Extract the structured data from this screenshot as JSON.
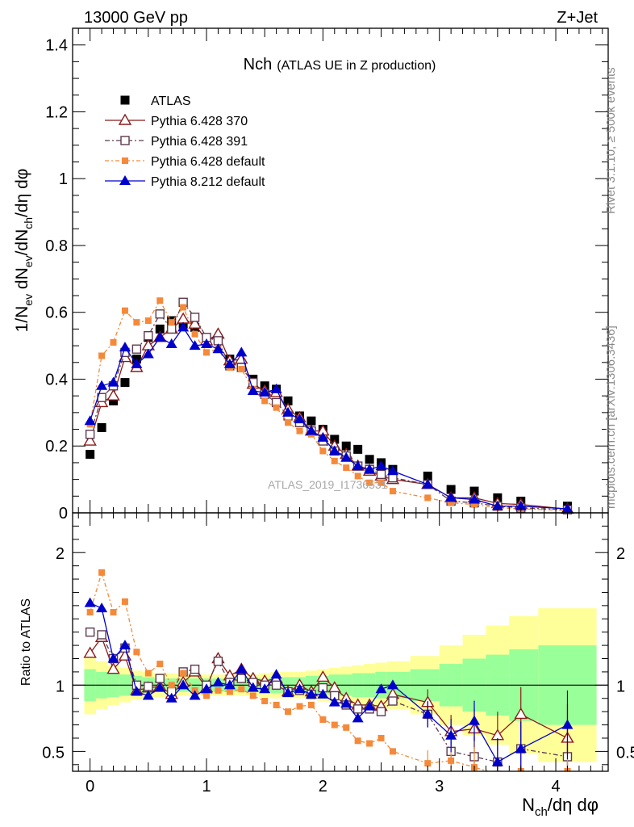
{
  "header": {
    "left": "13000 GeV pp",
    "right": "Z+Jet"
  },
  "side_text": {
    "top": "Rivet 3.1.10, ≥ 500k events",
    "bottom": "mcplots.cern.ch [arXiv:1306.3436]"
  },
  "watermark": "ATLAS_2019_I1736531",
  "colors": {
    "atlas": "#000000",
    "p370": "#8b1a1a",
    "p391": "#5c3a4e",
    "p6def": "#f5893a",
    "p8def": "#0000cc",
    "band_inner": "#99ff99",
    "band_outer": "#ffff99"
  },
  "chart_data": [
    {
      "type": "scatter",
      "panel": "main",
      "title_main": "Nch",
      "title_sub": "(ATLAS UE in Z production)",
      "ylabel": "1/N_ev dN_ev/dN_ch/dη dφ",
      "ylabel_parts": [
        "1/N",
        "ev",
        " dN",
        "ev",
        "/dN",
        "ch",
        "/dη dφ"
      ],
      "xlim": [
        -0.15,
        4.45
      ],
      "ylim": [
        0,
        1.45
      ],
      "y_ticks": [
        0,
        0.2,
        0.4,
        0.6,
        0.8,
        1,
        1.2,
        1.4
      ],
      "y_tick_labels": [
        "0",
        "0.2",
        "0.4",
        "0.6",
        "0.8",
        "1",
        "1.2",
        "1.4"
      ],
      "legend": [
        "ATLAS",
        "Pythia 6.428 370",
        "Pythia 6.428 391",
        "Pythia 6.428 default",
        "Pythia 8.212 default"
      ],
      "series": [
        {
          "name": "ATLAS",
          "x": [
            0,
            0.1,
            0.2,
            0.3,
            0.4,
            0.5,
            0.6,
            0.7,
            0.8,
            0.9,
            1.0,
            1.1,
            1.2,
            1.3,
            1.4,
            1.5,
            1.6,
            1.7,
            1.8,
            1.9,
            2.0,
            2.1,
            2.2,
            2.3,
            2.4,
            2.5,
            2.6,
            2.9,
            3.1,
            3.3,
            3.5,
            3.7,
            4.1
          ],
          "values": [
            0.175,
            0.255,
            0.335,
            0.39,
            0.46,
            0.525,
            0.55,
            0.575,
            0.565,
            0.555,
            0.52,
            0.52,
            0.46,
            0.445,
            0.4,
            0.38,
            0.37,
            0.335,
            0.29,
            0.275,
            0.25,
            0.22,
            0.2,
            0.19,
            0.16,
            0.15,
            0.13,
            0.11,
            0.07,
            0.065,
            0.045,
            0.035,
            0.02
          ]
        },
        {
          "name": "Pythia 6.428 370",
          "x": [
            0,
            0.1,
            0.2,
            0.3,
            0.4,
            0.5,
            0.6,
            0.7,
            0.8,
            0.9,
            1.0,
            1.1,
            1.2,
            1.3,
            1.4,
            1.5,
            1.6,
            1.7,
            1.8,
            1.9,
            2.0,
            2.1,
            2.2,
            2.3,
            2.4,
            2.5,
            2.6,
            2.9,
            3.1,
            3.3,
            3.5,
            3.7,
            4.1
          ],
          "values": [
            0.215,
            0.33,
            0.35,
            0.465,
            0.435,
            0.5,
            0.525,
            0.55,
            0.58,
            0.565,
            0.515,
            0.535,
            0.455,
            0.46,
            0.385,
            0.365,
            0.36,
            0.31,
            0.285,
            0.245,
            0.245,
            0.2,
            0.175,
            0.14,
            0.125,
            0.11,
            0.1,
            0.085,
            0.045,
            0.045,
            0.028,
            0.025,
            0.011
          ]
        },
        {
          "name": "Pythia 6.428 391",
          "x": [
            0,
            0.1,
            0.2,
            0.3,
            0.4,
            0.5,
            0.6,
            0.7,
            0.8,
            0.9,
            1.0,
            1.1,
            1.2,
            1.3,
            1.4,
            1.5,
            1.6,
            1.7,
            1.8,
            1.9,
            2.0,
            2.1,
            2.2,
            2.3,
            2.4,
            2.5,
            2.6,
            2.9,
            3.1,
            3.3,
            3.5,
            3.7,
            4.1
          ],
          "values": [
            0.235,
            0.345,
            0.38,
            0.48,
            0.49,
            0.53,
            0.595,
            0.55,
            0.63,
            0.585,
            0.525,
            0.515,
            0.44,
            0.435,
            0.39,
            0.355,
            0.33,
            0.29,
            0.27,
            0.245,
            0.215,
            0.185,
            0.17,
            0.14,
            0.13,
            0.115,
            0.105,
            0.085,
            0.035,
            0.03,
            0.02,
            0.015,
            0.009
          ]
        },
        {
          "name": "Pythia 6.428 default",
          "x": [
            0,
            0.1,
            0.2,
            0.3,
            0.4,
            0.5,
            0.6,
            0.7,
            0.8,
            0.9,
            1.0,
            1.1,
            1.2,
            1.3,
            1.4,
            1.5,
            1.6,
            1.7,
            1.8,
            1.9,
            2.0,
            2.1,
            2.2,
            2.3,
            2.4,
            2.5,
            2.6,
            2.9,
            3.1,
            3.3,
            3.5,
            3.7,
            4.1
          ],
          "values": [
            0.265,
            0.47,
            0.51,
            0.605,
            0.57,
            0.575,
            0.635,
            0.57,
            0.615,
            0.535,
            0.48,
            0.49,
            0.435,
            0.43,
            0.37,
            0.335,
            0.315,
            0.27,
            0.245,
            0.235,
            0.185,
            0.155,
            0.135,
            0.11,
            0.09,
            0.09,
            0.065,
            0.045,
            0.03,
            0.025,
            0.015,
            0.012,
            0.007
          ]
        },
        {
          "name": "Pythia 8.212 default",
          "x": [
            0,
            0.1,
            0.2,
            0.3,
            0.4,
            0.5,
            0.6,
            0.7,
            0.8,
            0.9,
            1.0,
            1.1,
            1.2,
            1.3,
            1.4,
            1.5,
            1.6,
            1.7,
            1.8,
            1.9,
            2.0,
            2.1,
            2.2,
            2.3,
            2.4,
            2.5,
            2.6,
            2.9,
            3.1,
            3.3,
            3.5,
            3.7,
            4.1
          ],
          "values": [
            0.275,
            0.38,
            0.39,
            0.495,
            0.445,
            0.475,
            0.525,
            0.505,
            0.555,
            0.5,
            0.505,
            0.49,
            0.445,
            0.48,
            0.365,
            0.36,
            0.37,
            0.3,
            0.28,
            0.245,
            0.225,
            0.185,
            0.165,
            0.14,
            0.13,
            0.14,
            0.125,
            0.085,
            0.045,
            0.04,
            0.02,
            0.02,
            0.012
          ]
        }
      ]
    },
    {
      "type": "scatter",
      "panel": "ratio",
      "ylabel": "Ratio to ATLAS",
      "xlabel": "N_ch/dη dφ",
      "xlabel_parts": [
        "N",
        "ch",
        "/dη dφ"
      ],
      "xlim": [
        -0.15,
        4.45
      ],
      "ylim": [
        0.35,
        2.3
      ],
      "x_ticks": [
        0,
        1,
        2,
        3,
        4
      ],
      "x_tick_labels": [
        "0",
        "1",
        "2",
        "3",
        "4"
      ],
      "y_ticks": [
        0.5,
        1,
        2
      ],
      "y_tick_labels": [
        "0.5",
        "1",
        "2"
      ],
      "reference_line": 1,
      "band_edges": [
        -0.05,
        0.05,
        0.15,
        0.25,
        0.35,
        0.45,
        0.55,
        0.65,
        0.75,
        0.85,
        0.95,
        1.05,
        1.15,
        1.25,
        1.35,
        1.45,
        1.55,
        1.65,
        1.75,
        1.85,
        1.95,
        2.05,
        2.15,
        2.25,
        2.35,
        2.45,
        2.55,
        2.75,
        3.0,
        3.2,
        3.4,
        3.6,
        3.85,
        4.35
      ],
      "band_inner": [
        0.12,
        0.1,
        0.09,
        0.08,
        0.07,
        0.06,
        0.05,
        0.05,
        0.05,
        0.05,
        0.05,
        0.05,
        0.05,
        0.05,
        0.05,
        0.05,
        0.06,
        0.06,
        0.06,
        0.07,
        0.07,
        0.08,
        0.08,
        0.09,
        0.09,
        0.1,
        0.1,
        0.12,
        0.16,
        0.2,
        0.23,
        0.27,
        0.3
      ],
      "band_outer": [
        0.22,
        0.18,
        0.15,
        0.13,
        0.11,
        0.1,
        0.09,
        0.09,
        0.08,
        0.08,
        0.08,
        0.08,
        0.08,
        0.08,
        0.08,
        0.09,
        0.1,
        0.1,
        0.1,
        0.11,
        0.12,
        0.13,
        0.14,
        0.15,
        0.16,
        0.17,
        0.18,
        0.22,
        0.3,
        0.38,
        0.45,
        0.52,
        0.58
      ],
      "series": [
        {
          "name": "Pythia 6.428 370",
          "x": [
            0,
            0.1,
            0.2,
            0.3,
            0.4,
            0.5,
            0.6,
            0.7,
            0.8,
            0.9,
            1.0,
            1.1,
            1.2,
            1.3,
            1.4,
            1.5,
            1.6,
            1.7,
            1.8,
            1.9,
            2.0,
            2.1,
            2.2,
            2.3,
            2.4,
            2.5,
            2.6,
            2.9,
            3.1,
            3.3,
            3.5,
            3.7,
            4.1
          ],
          "values": [
            1.24,
            1.36,
            1.12,
            1.22,
            0.96,
            0.98,
            0.99,
            0.93,
            1.02,
            1.1,
            0.98,
            1.2,
            1.07,
            1.12,
            1.05,
            1.03,
            1.05,
            0.95,
            1.0,
            0.95,
            1.06,
            0.98,
            0.9,
            0.85,
            0.85,
            0.84,
            0.93,
            0.87,
            0.65,
            0.67,
            0.62,
            0.78,
            0.6
          ]
        },
        {
          "name": "Pythia 6.428 391",
          "x": [
            0,
            0.1,
            0.2,
            0.3,
            0.4,
            0.5,
            0.6,
            0.7,
            0.8,
            0.9,
            1.0,
            1.1,
            1.2,
            1.3,
            1.4,
            1.5,
            1.6,
            1.7,
            1.8,
            1.9,
            2.0,
            2.1,
            2.2,
            2.3,
            2.4,
            2.5,
            2.6,
            2.9,
            3.1,
            3.3,
            3.5,
            3.7,
            4.1
          ],
          "values": [
            1.4,
            1.38,
            1.2,
            1.28,
            1.0,
            0.99,
            1.05,
            0.95,
            1.1,
            1.12,
            1.0,
            1.18,
            1.02,
            1.05,
            1.02,
            1.0,
            1.0,
            0.95,
            0.96,
            0.93,
            0.98,
            0.92,
            0.85,
            0.82,
            0.82,
            0.8,
            0.88,
            0.78,
            0.5,
            0.46,
            0.42,
            0.52,
            0.46
          ]
        },
        {
          "name": "Pythia 6.428 default",
          "x": [
            0,
            0.1,
            0.2,
            0.3,
            0.4,
            0.5,
            0.6,
            0.7,
            0.8,
            0.9,
            1.0,
            1.1,
            1.2,
            1.3,
            1.4,
            1.5,
            1.6,
            1.7,
            1.8,
            1.9,
            2.0,
            2.1,
            2.2,
            2.3,
            2.4,
            2.5,
            2.6,
            2.9,
            3.1,
            3.3,
            3.5,
            3.7,
            4.1
          ],
          "values": [
            1.55,
            1.85,
            1.55,
            1.63,
            1.25,
            1.09,
            1.16,
            1.0,
            1.09,
            0.96,
            0.92,
            0.96,
            0.95,
            0.97,
            0.92,
            0.88,
            0.85,
            0.8,
            0.84,
            0.85,
            0.74,
            0.7,
            0.68,
            0.58,
            0.56,
            0.6,
            0.5,
            0.41,
            0.43,
            0.38,
            0.33,
            0.35,
            0.35
          ]
        },
        {
          "name": "Pythia 8.212 default",
          "x": [
            0,
            0.1,
            0.2,
            0.3,
            0.4,
            0.5,
            0.6,
            0.7,
            0.8,
            0.9,
            1.0,
            1.1,
            1.2,
            1.3,
            1.4,
            1.5,
            1.6,
            1.7,
            1.8,
            1.9,
            2.0,
            2.1,
            2.2,
            2.3,
            2.4,
            2.5,
            2.6,
            2.9,
            3.1,
            3.3,
            3.5,
            3.7,
            4.1
          ],
          "values": [
            1.62,
            1.58,
            1.2,
            1.3,
            0.95,
            0.92,
            0.98,
            0.9,
            1.0,
            0.92,
            0.97,
            1.02,
            1.0,
            1.12,
            0.98,
            0.97,
            1.08,
            0.94,
            0.97,
            0.93,
            0.93,
            0.87,
            0.86,
            0.75,
            0.84,
            0.97,
            1.0,
            0.78,
            0.62,
            0.73,
            0.42,
            0.52,
            0.7
          ]
        }
      ]
    }
  ]
}
